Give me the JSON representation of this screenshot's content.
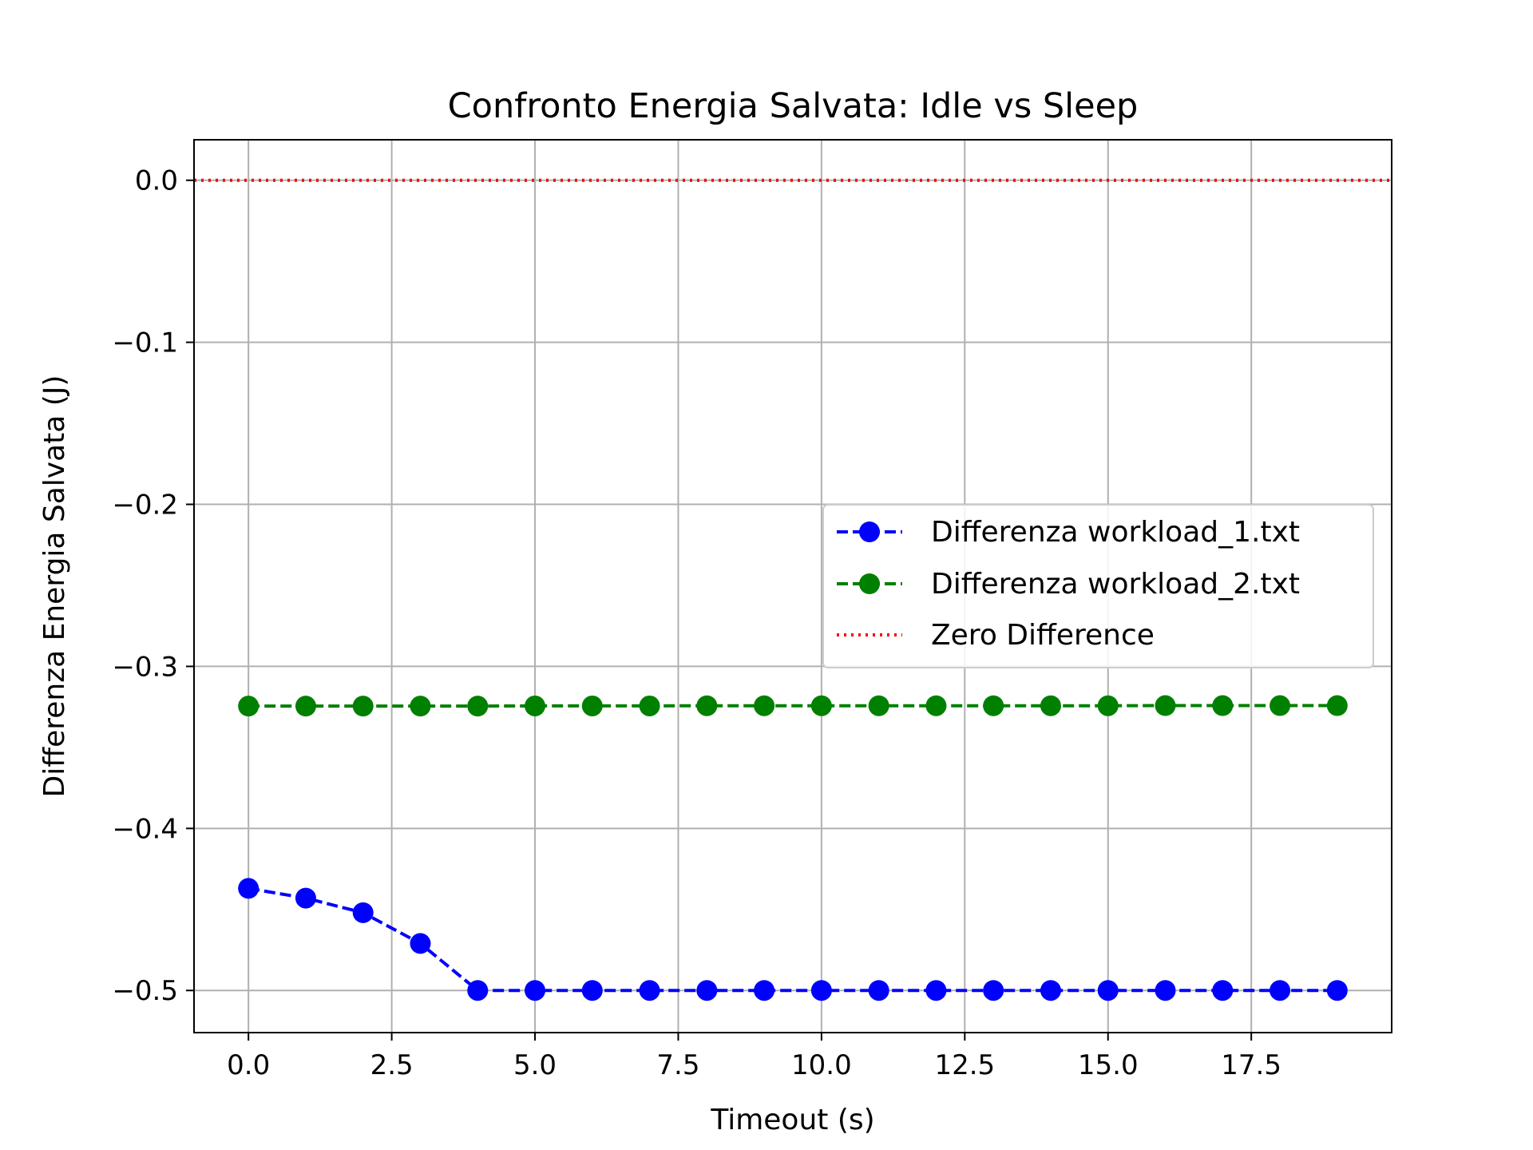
{
  "chart_data": {
    "type": "line",
    "title": "Confronto Energia Salvata: Idle vs Sleep",
    "xlabel": "Timeout (s)",
    "ylabel": "Differenza Energia Salvata (J)",
    "xlim": [
      -0.95,
      19.95
    ],
    "ylim": [
      -0.526,
      0.025
    ],
    "xticks": [
      0.0,
      2.5,
      5.0,
      7.5,
      10.0,
      12.5,
      15.0,
      17.5
    ],
    "xtick_labels": [
      "0.0",
      "2.5",
      "5.0",
      "7.5",
      "10.0",
      "12.5",
      "15.0",
      "17.5"
    ],
    "yticks": [
      0.0,
      -0.1,
      -0.2,
      -0.3,
      -0.4,
      -0.5
    ],
    "ytick_labels": [
      "0.0",
      "−0.1",
      "−0.2",
      "−0.3",
      "−0.4",
      "−0.5"
    ],
    "grid": true,
    "legend_position": "center-right",
    "x": [
      0,
      1,
      2,
      3,
      4,
      5,
      6,
      7,
      8,
      9,
      10,
      11,
      12,
      13,
      14,
      15,
      16,
      17,
      18,
      19
    ],
    "series": [
      {
        "name": "Differenza workload_1.txt",
        "color": "#0000ff",
        "style": "dashed",
        "marker": "circle",
        "values": [
          -0.437,
          -0.443,
          -0.452,
          -0.471,
          -0.5,
          -0.5,
          -0.5,
          -0.5,
          -0.5,
          -0.5,
          -0.5,
          -0.5,
          -0.5,
          -0.5,
          -0.5,
          -0.5,
          -0.5,
          -0.5,
          -0.5,
          -0.5
        ]
      },
      {
        "name": "Differenza workload_2.txt",
        "color": "#008000",
        "style": "dashed",
        "marker": "circle",
        "values": [
          -0.3245,
          -0.3245,
          -0.3245,
          -0.3245,
          -0.3245,
          -0.3244,
          -0.3244,
          -0.3244,
          -0.3243,
          -0.3243,
          -0.3243,
          -0.3243,
          -0.3243,
          -0.3243,
          -0.3243,
          -0.3243,
          -0.3242,
          -0.3242,
          -0.3242,
          -0.3242
        ]
      }
    ],
    "reference_lines": [
      {
        "name": "Zero Difference",
        "y": 0.0,
        "color": "#ff0000",
        "style": "dotted"
      }
    ]
  }
}
